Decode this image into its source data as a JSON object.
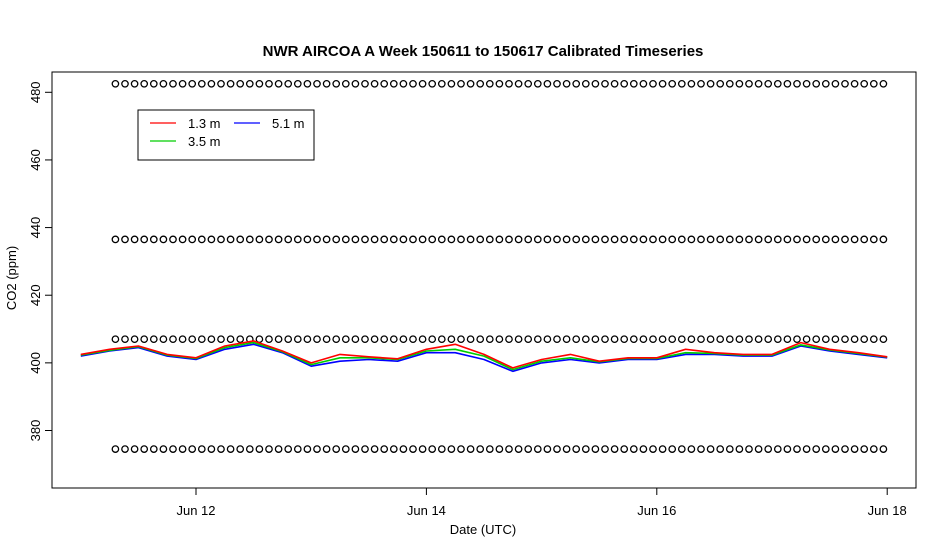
{
  "chart_data": {
    "type": "line",
    "title": "NWR AIRCOA A  Week 150611 to 150617  Calibrated Timeseries",
    "xlabel": "Date (UTC)",
    "ylabel": "CO2 (ppm)",
    "x_start": "Jun 11 00:00",
    "x_end": "Jun 18 00:00",
    "xlim_days_from_jun11": [
      -0.25,
      7.25
    ],
    "ylim": [
      363,
      486
    ],
    "x_ticks": [
      {
        "day": 1,
        "label": "Jun 12"
      },
      {
        "day": 3,
        "label": "Jun 14"
      },
      {
        "day": 5,
        "label": "Jun 16"
      },
      {
        "day": 7,
        "label": "Jun 18"
      }
    ],
    "y_ticks": [
      380,
      400,
      420,
      440,
      460,
      480
    ],
    "legend": {
      "placement": "top-left",
      "entries": [
        {
          "name": "1.3 m",
          "color": "#ff0000"
        },
        {
          "name": "3.5 m",
          "color": "#00cd00"
        },
        {
          "name": "5.1 m",
          "color": "#0000ff"
        }
      ]
    },
    "reference_circles": {
      "color": "#000000",
      "levels_ppm": [
        482.5,
        436.5,
        407,
        374.5
      ],
      "interval_hours": 2
    },
    "series": [
      {
        "name": "5.1 m",
        "color": "#0000ff",
        "x_days": [
          0.0,
          0.25,
          0.5,
          0.75,
          1.0,
          1.25,
          1.5,
          1.75,
          2.0,
          2.25,
          2.5,
          2.75,
          3.0,
          3.25,
          3.5,
          3.75,
          4.0,
          4.25,
          4.5,
          4.75,
          5.0,
          5.25,
          5.5,
          5.75,
          6.0,
          6.25,
          6.5,
          6.75,
          7.0
        ],
        "values": [
          402,
          403.5,
          404.5,
          402,
          401,
          404,
          405.5,
          403,
          399,
          400.5,
          401,
          400.5,
          403,
          403,
          401,
          397.5,
          400,
          401,
          400,
          401,
          401,
          402.5,
          402.5,
          402,
          402,
          405,
          403.5,
          402.5,
          401.5
        ]
      },
      {
        "name": "3.5 m",
        "color": "#00cd00",
        "x_days": [
          0.0,
          0.25,
          0.5,
          0.75,
          1.0,
          1.25,
          1.5,
          1.75,
          2.0,
          2.25,
          2.5,
          2.75,
          3.0,
          3.25,
          3.5,
          3.75,
          4.0,
          4.25,
          4.5,
          4.75,
          5.0,
          5.25,
          5.5,
          5.75,
          6.0,
          6.25,
          6.5,
          6.75,
          7.0
        ],
        "values": [
          402.3,
          403.7,
          404.8,
          402.3,
          401.3,
          404.5,
          406,
          403.3,
          399.5,
          401.5,
          401.5,
          401,
          403.5,
          404,
          402,
          398,
          400.5,
          401.5,
          400.3,
          401.3,
          401.3,
          403,
          402.8,
          402.3,
          402.3,
          405.3,
          403.8,
          402.8,
          401.7
        ]
      },
      {
        "name": "1.3 m",
        "color": "#ff0000",
        "x_days": [
          0.0,
          0.25,
          0.5,
          0.75,
          1.0,
          1.25,
          1.5,
          1.75,
          2.0,
          2.25,
          2.5,
          2.75,
          3.0,
          3.25,
          3.5,
          3.75,
          4.0,
          4.25,
          4.5,
          4.75,
          5.0,
          5.25,
          5.5,
          5.75,
          6.0,
          6.25,
          6.5,
          6.75,
          7.0
        ],
        "values": [
          402.5,
          404,
          405,
          402.5,
          401.5,
          405,
          406.5,
          403.5,
          400,
          402.5,
          401.8,
          401.2,
          404,
          405.5,
          402.5,
          398.5,
          401,
          402.5,
          400.5,
          401.5,
          401.5,
          404,
          403,
          402.5,
          402.5,
          406,
          404,
          403,
          401.8
        ]
      }
    ]
  }
}
